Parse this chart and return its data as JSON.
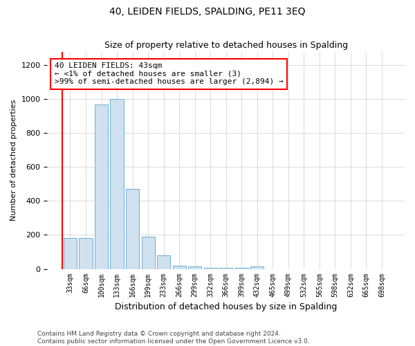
{
  "title": "40, LEIDEN FIELDS, SPALDING, PE11 3EQ",
  "subtitle": "Size of property relative to detached houses in Spalding",
  "xlabel": "Distribution of detached houses by size in Spalding",
  "ylabel": "Number of detached properties",
  "categories": [
    "33sqm",
    "66sqm",
    "100sqm",
    "133sqm",
    "166sqm",
    "199sqm",
    "233sqm",
    "266sqm",
    "299sqm",
    "332sqm",
    "366sqm",
    "399sqm",
    "432sqm",
    "465sqm",
    "499sqm",
    "532sqm",
    "565sqm",
    "598sqm",
    "632sqm",
    "665sqm",
    "698sqm"
  ],
  "values": [
    180,
    180,
    970,
    1000,
    470,
    190,
    80,
    20,
    15,
    8,
    5,
    5,
    15,
    0,
    0,
    0,
    0,
    0,
    0,
    0,
    0
  ],
  "bar_color": "#cfe0ef",
  "bar_edge_color": "#6aaed6",
  "annotation_box_text": "40 LEIDEN FIELDS: 43sqm\n← <1% of detached houses are smaller (3)\n>99% of semi-detached houses are larger (2,894) →",
  "ylim": [
    0,
    1280
  ],
  "yticks": [
    0,
    200,
    400,
    600,
    800,
    1000,
    1200
  ],
  "footer_line1": "Contains HM Land Registry data © Crown copyright and database right 2024.",
  "footer_line2": "Contains public sector information licensed under the Open Government Licence v3.0.",
  "background_color": "#ffffff",
  "grid_color": "#cccccc"
}
